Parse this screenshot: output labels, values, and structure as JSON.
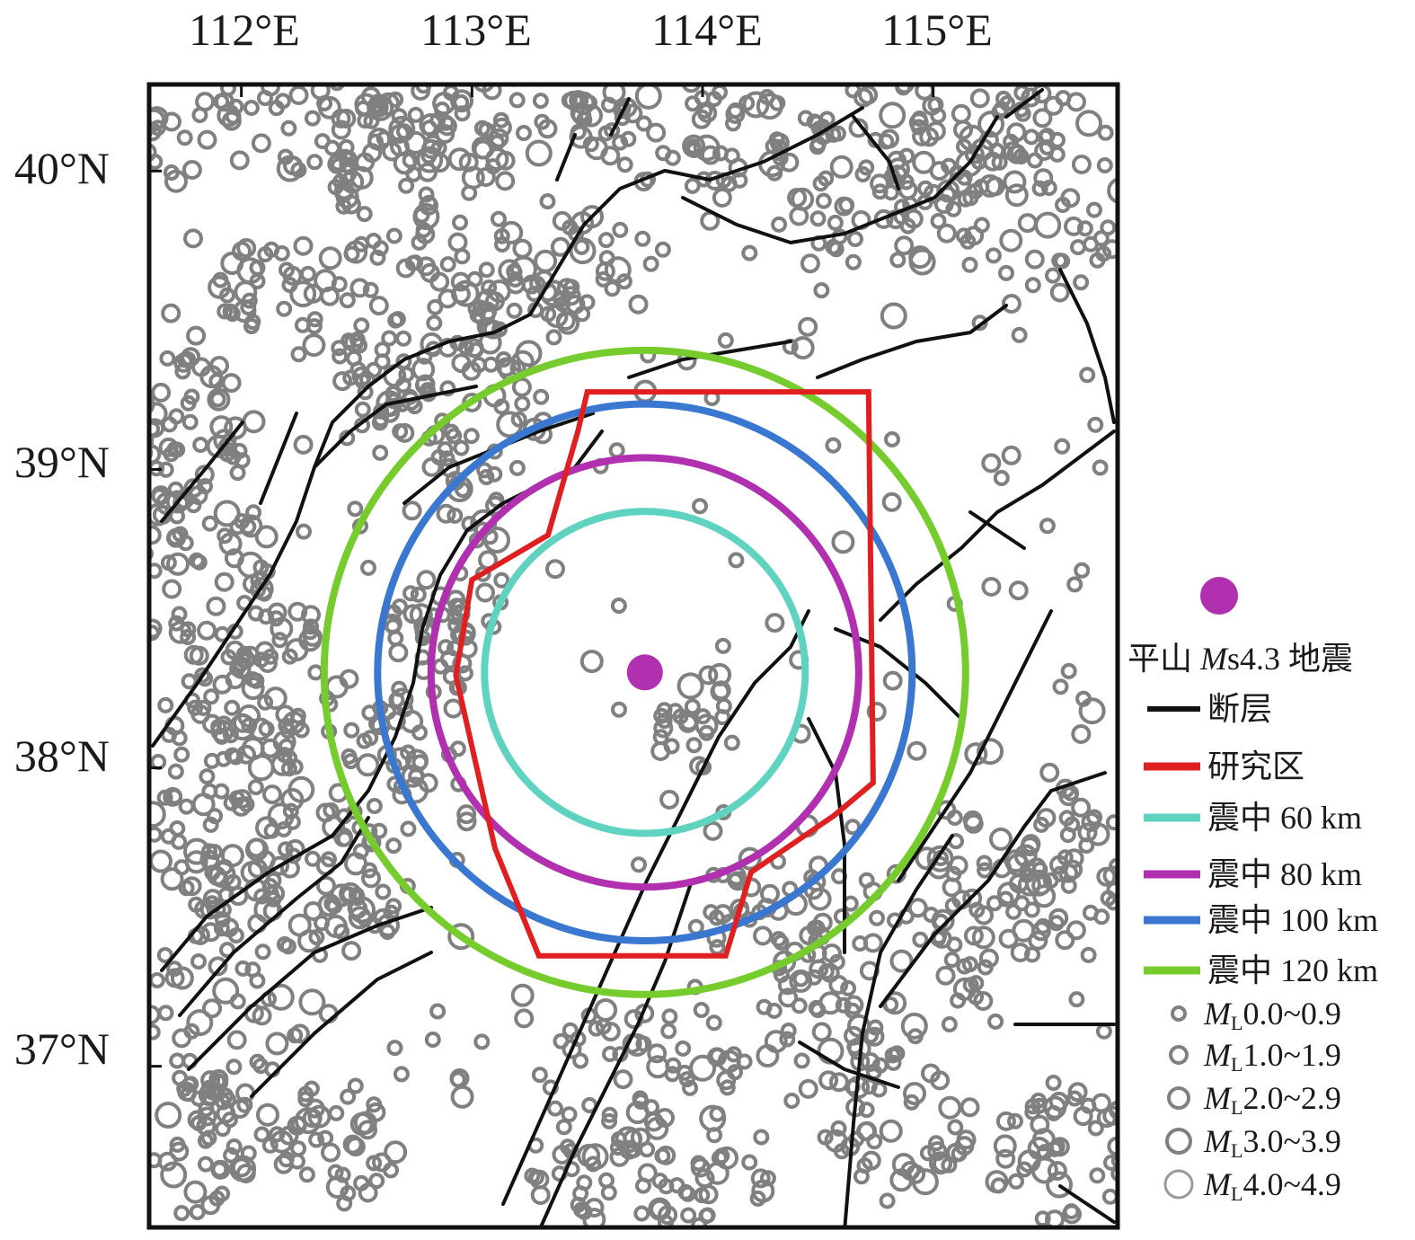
{
  "map": {
    "lon_labels": [
      "112°E",
      "113°E",
      "114°E",
      "115°E"
    ],
    "lat_labels": [
      "40°N",
      "39°N",
      "38°N",
      "37°N"
    ],
    "extent": {
      "lon_min": 111.6,
      "lon_max": 115.8,
      "lat_min": 36.46,
      "lat_max": 40.29
    },
    "ticks": {
      "lon": [
        112,
        113,
        114,
        115
      ],
      "lat": [
        40,
        39,
        38,
        37
      ]
    },
    "epicenter": {
      "lon": 113.75,
      "lat": 38.32,
      "color": "#b030b0"
    },
    "rings": [
      {
        "radius_km": 60,
        "color": "#5fd3c0"
      },
      {
        "radius_km": 80,
        "color": "#b030b0"
      },
      {
        "radius_km": 100,
        "color": "#3a77d1"
      },
      {
        "radius_km": 120,
        "color": "#76cc2d"
      }
    ],
    "study_area": {
      "color": "#e02020",
      "polygon": [
        [
          113.5,
          39.26
        ],
        [
          114.72,
          39.26
        ],
        [
          114.74,
          37.95
        ],
        [
          114.57,
          37.84
        ],
        [
          114.21,
          37.65
        ],
        [
          114.1,
          37.37
        ],
        [
          113.29,
          37.37
        ],
        [
          113.1,
          37.73
        ],
        [
          112.93,
          38.31
        ],
        [
          113.0,
          38.63
        ],
        [
          113.33,
          38.78
        ],
        [
          113.46,
          39.13
        ]
      ]
    },
    "fault_color": "#111111",
    "seismicity_color": "#808080"
  },
  "legend": {
    "epicenter_label_prefix": "平山 ",
    "epicenter_label_italic": "M",
    "epicenter_label_suffix": "s4.3 地震",
    "fault": "断层",
    "study_area": "研究区",
    "ring_60": "震中 60 km",
    "ring_80": "震中 80 km",
    "ring_100": "震中 100 km",
    "ring_120": "震中 120 km",
    "mag_symbol": "M",
    "mag_subscript": "L",
    "mag_classes": [
      "0.0~0.9",
      "1.0~1.9",
      "2.0~2.9",
      "3.0~3.9",
      "4.0~4.9"
    ]
  }
}
